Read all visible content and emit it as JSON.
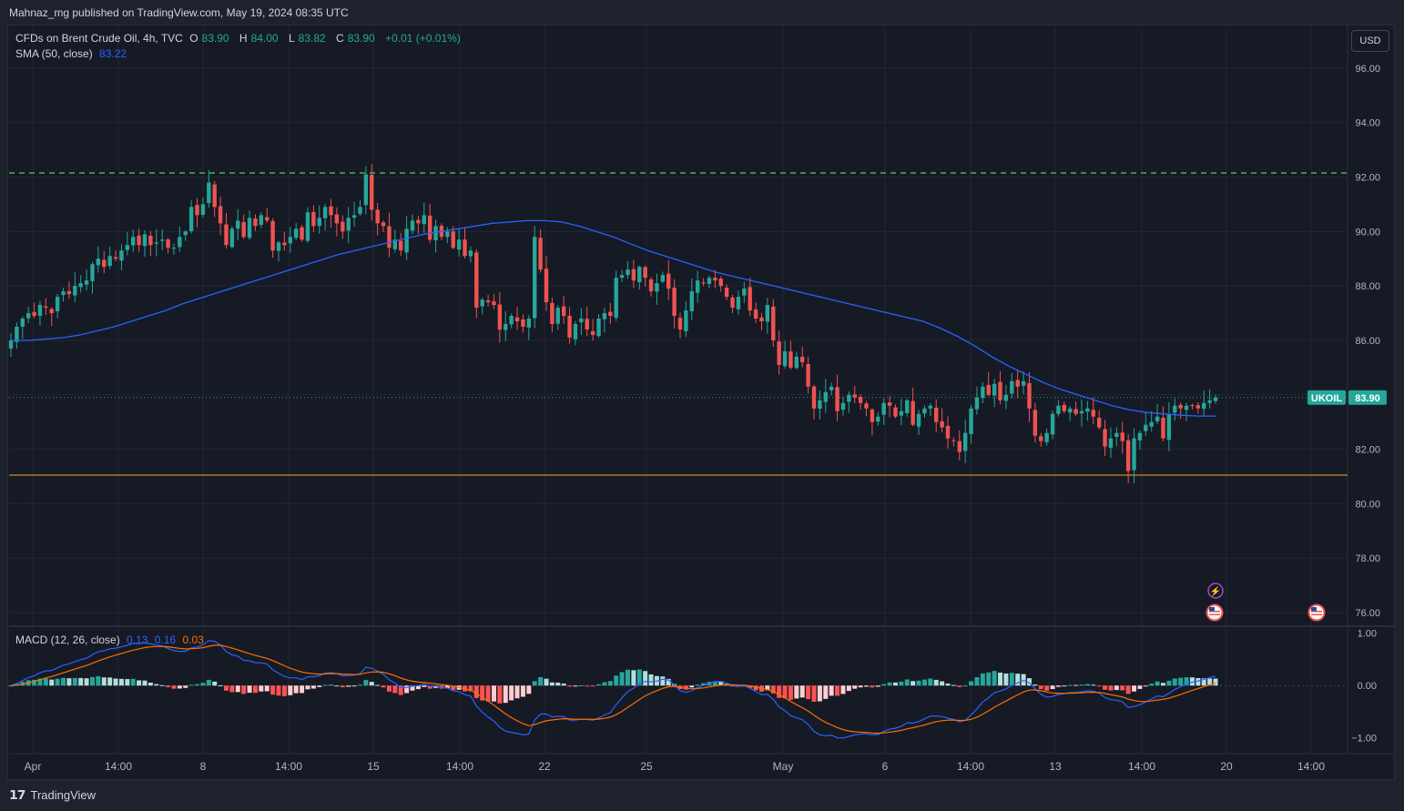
{
  "header": {
    "published_line": "Mahnaz_mg published on TradingView.com, May 19, 2024 08:35 UTC"
  },
  "legend": {
    "symbol_text": "CFDs on Brent Crude Oil, 4h, TVC",
    "o_label": "O",
    "o_value": "83.90",
    "h_label": "H",
    "h_value": "84.00",
    "l_label": "L",
    "l_value": "83.82",
    "c_label": "C",
    "c_value": "83.90",
    "change": "+0.01 (+0.01%)",
    "sma_label": "SMA (50, close)",
    "sma_value": "83.22",
    "macd_label": "MACD (12, 26, close)",
    "macd_value": "0.13",
    "signal_value": "0.16",
    "hist_value": "0.03"
  },
  "currency_button": "USD",
  "price_tag": {
    "symbol": "UKOIL",
    "value": "83.90"
  },
  "footer": {
    "brand": "TradingView"
  },
  "colors": {
    "up": "#26a69a",
    "down": "#ef5350",
    "sma": "#2962ff",
    "macd_line": "#2962ff",
    "signal_line": "#ff6d00",
    "hist_up_strong": "#26a69a",
    "hist_up_weak": "#b2dfdb",
    "hist_down_strong": "#ff5252",
    "hist_down_weak": "#ffcdd2",
    "resistance": "#4caf50",
    "support": "#f9a825"
  },
  "chart_data": [
    {
      "type": "candlestick",
      "ylim": [
        75.5,
        97.5
      ],
      "y_ticks": [
        "96.00",
        "94.00",
        "92.00",
        "90.00",
        "88.00",
        "86.00",
        "84.00",
        "82.00",
        "80.00",
        "78.00",
        "76.00"
      ],
      "x_ticks": [
        "Apr",
        "14:00",
        "8",
        "14:00",
        "15",
        "14:00",
        "22",
        "25",
        "May",
        "6",
        "14:00",
        "13",
        "14:00",
        "20",
        "14:00"
      ],
      "last_price": 83.9,
      "resistance_level": 92.15,
      "support_level": 81.05,
      "candles_close": [
        86.0,
        86.5,
        86.8,
        87.0,
        86.9,
        87.3,
        87.2,
        87.0,
        87.6,
        87.8,
        87.7,
        88.0,
        88.1,
        88.2,
        88.8,
        89.0,
        88.7,
        89.1,
        89.0,
        89.3,
        89.5,
        89.8,
        89.5,
        89.9,
        89.5,
        89.6,
        89.7,
        89.4,
        89.4,
        89.8,
        90.0,
        90.9,
        90.6,
        91.0,
        91.8,
        90.9,
        90.3,
        89.5,
        90.1,
        90.4,
        89.8,
        90.5,
        90.2,
        90.6,
        90.4,
        89.3,
        89.6,
        89.5,
        89.8,
        90.1,
        89.7,
        90.7,
        90.2,
        90.5,
        90.9,
        90.6,
        90.3,
        90.0,
        90.5,
        90.6,
        90.9,
        92.1,
        90.8,
        90.3,
        90.2,
        89.4,
        89.7,
        89.3,
        90.1,
        90.4,
        90.3,
        90.6,
        89.7,
        90.2,
        89.8,
        90.0,
        89.4,
        89.7,
        89.1,
        89.3,
        87.2,
        87.5,
        87.4,
        87.3,
        86.4,
        86.6,
        86.9,
        86.7,
        86.5,
        86.8,
        89.8,
        88.6,
        87.4,
        86.6,
        87.2,
        86.9,
        86.1,
        86.6,
        86.8,
        86.4,
        86.2,
        86.8,
        87.0,
        86.9,
        88.3,
        88.4,
        88.6,
        88.2,
        88.7,
        88.3,
        87.8,
        88.1,
        88.4,
        87.9,
        86.9,
        86.4,
        87.1,
        87.8,
        88.2,
        88.1,
        88.3,
        88.2,
        88.0,
        87.6,
        87.2,
        87.6,
        87.9,
        87.1,
        86.8,
        86.7,
        87.3,
        86.0,
        85.1,
        85.6,
        85.0,
        85.4,
        85.2,
        84.3,
        83.5,
        83.8,
        84.1,
        84.3,
        83.4,
        83.7,
        84.0,
        83.9,
        83.7,
        83.5,
        83.0,
        83.2,
        83.7,
        83.6,
        83.2,
        83.4,
        83.8,
        82.9,
        83.3,
        83.5,
        83.6,
        83.0,
        82.8,
        82.4,
        82.3,
        81.9,
        82.6,
        83.5,
        83.9,
        84.3,
        84.0,
        84.4,
        83.8,
        84.0,
        84.5,
        84.3,
        84.5,
        83.5,
        82.5,
        82.3,
        82.6,
        83.3,
        83.6,
        83.4,
        83.5,
        83.3,
        83.4,
        83.5,
        83.2,
        82.8,
        82.1,
        82.4,
        82.6,
        82.3,
        81.2,
        82.4,
        82.6,
        82.9,
        83.0,
        83.2,
        82.4,
        83.3,
        83.6,
        83.5,
        83.6,
        83.6,
        83.5,
        83.7,
        83.8,
        83.9
      ],
      "sma_line": [
        86.0,
        86.0,
        86.05,
        86.1,
        86.2,
        86.35,
        86.5,
        86.7,
        86.9,
        87.1,
        87.35,
        87.55,
        87.75,
        87.95,
        88.15,
        88.35,
        88.55,
        88.75,
        88.95,
        89.15,
        89.3,
        89.45,
        89.6,
        89.75,
        89.9,
        90.0,
        90.1,
        90.2,
        90.3,
        90.35,
        90.4,
        90.4,
        90.35,
        90.2,
        90.0,
        89.8,
        89.55,
        89.3,
        89.1,
        88.9,
        88.7,
        88.5,
        88.35,
        88.2,
        88.05,
        87.9,
        87.75,
        87.6,
        87.45,
        87.3,
        87.15,
        87.0,
        86.85,
        86.7,
        86.45,
        86.15,
        85.8,
        85.4,
        85.05,
        84.75,
        84.45,
        84.2,
        84.0,
        83.8,
        83.6,
        83.45,
        83.35,
        83.3,
        83.25,
        83.22,
        83.22
      ],
      "macd_ylim": [
        -1.25,
        1.1
      ],
      "macd_ticks": [
        "1.00",
        "0.00",
        "−1.00"
      ]
    }
  ]
}
